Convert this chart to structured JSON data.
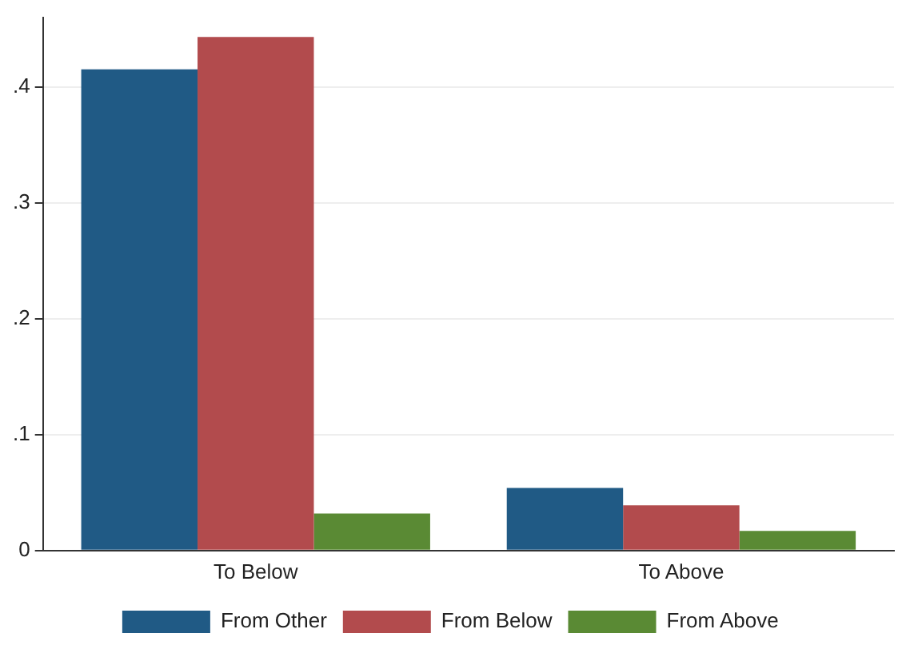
{
  "chart_data": {
    "type": "bar",
    "categories": [
      "To Below",
      "To Above"
    ],
    "series": [
      {
        "name": "From Other",
        "color": "#205a85",
        "values": [
          0.415,
          0.054
        ]
      },
      {
        "name": "From Below",
        "color": "#b24b4d",
        "values": [
          0.443,
          0.039
        ]
      },
      {
        "name": "From Above",
        "color": "#5a8a34",
        "values": [
          0.032,
          0.017
        ]
      }
    ],
    "ylim": [
      0,
      0.46
    ],
    "yticks": [
      0,
      {
        "value": 0.1,
        "label": ".1"
      },
      {
        "value": 0.2,
        "label": ".2"
      },
      {
        "value": 0.3,
        "label": ".3"
      },
      {
        "value": 0.4,
        "label": ".4"
      }
    ],
    "grid": "y",
    "legend": "bottom"
  }
}
